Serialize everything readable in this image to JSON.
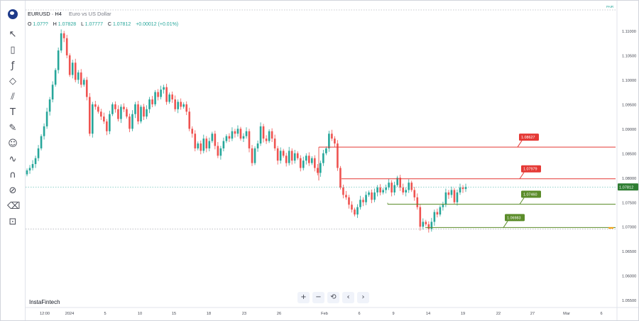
{
  "header": {
    "symbol": "EURUSD · H4",
    "description": "Euro vs US Dollar"
  },
  "ohlc": {
    "o_label": "O",
    "o": "1.07??",
    "h_label": "H",
    "h": "1.07828",
    "l_label": "L",
    "l": "1.07777",
    "c_label": "C",
    "c": "1.07812",
    "change": "+0.00012 (+0.01%)"
  },
  "top_right_label": "PAIR",
  "brand": "InstaFintech",
  "toolbar_icons": [
    "logo-icon",
    "crosshair-icon",
    "candles-icon",
    "fx-icon",
    "diamond-icon",
    "lines-icon",
    "text-icon",
    "pencil-icon",
    "smiley-icon",
    "wave-icon",
    "magnet-icon",
    "eye-off-icon",
    "trash-icon",
    "lock-icon"
  ],
  "nav_buttons": [
    "+",
    "−",
    "⟲",
    "‹",
    "›"
  ],
  "colors": {
    "up": "#26a69a",
    "down": "#ef5350",
    "red_level": "#e53935",
    "green_level": "#5b8c2a",
    "last_price": "#2e7d32"
  },
  "chart_data": {
    "type": "candlestick",
    "symbol": "EURUSD",
    "timeframe": "H4",
    "ylim": [
      1.0535,
      1.115
    ],
    "y_ticks": [
      1.11,
      1.105,
      1.1,
      1.095,
      1.09,
      1.085,
      1.08,
      1.075,
      1.07,
      1.065,
      1.06,
      1.055
    ],
    "x_ticks": [
      "12:00",
      "2024",
      "5",
      "10",
      "15",
      "18",
      "23",
      "26",
      "Feb",
      "6",
      "9",
      "14",
      "19",
      "22",
      "27",
      "Mar",
      "6"
    ],
    "last_price": 1.07812,
    "levels": [
      {
        "label": "1.08627",
        "value": 1.08627,
        "color": "red",
        "from": "Feb"
      },
      {
        "label": "1.07979",
        "value": 1.07979,
        "color": "red",
        "from": "Feb 3"
      },
      {
        "label": "1.07460",
        "value": 1.0746,
        "color": "green",
        "from": "Feb 9"
      },
      {
        "label": "1.06983",
        "value": 1.06983,
        "color": "green",
        "from": "Feb 14"
      }
    ],
    "closes": [
      1.0815,
      1.082,
      1.0828,
      1.084,
      1.086,
      1.0885,
      1.0905,
      1.0935,
      1.096,
      1.099,
      1.102,
      1.106,
      1.1095,
      1.1085,
      1.105,
      1.101,
      1.1035,
      1.1,
      1.1015,
      1.099,
      1.1,
      1.0965,
      1.089,
      1.095,
      1.0945,
      1.0935,
      1.0925,
      1.0915,
      1.0895,
      1.093,
      1.095,
      1.094,
      1.092,
      1.0945,
      1.094,
      1.0925,
      1.09,
      1.093,
      1.095,
      1.0915,
      1.0945,
      1.0925,
      1.094,
      1.096,
      1.095,
      1.0975,
      1.0965,
      1.098,
      1.0985,
      1.0955,
      1.097,
      1.096,
      1.094,
      1.0955,
      1.0945,
      1.095,
      1.0935,
      1.09,
      1.089,
      1.086,
      1.087,
      1.0855,
      1.088,
      1.086,
      1.0875,
      1.089,
      1.0865,
      1.0845,
      1.086,
      1.0875,
      1.0885,
      1.088,
      1.0895,
      1.089,
      1.09,
      1.088,
      1.0885,
      1.0895,
      1.086,
      1.083,
      1.086,
      1.087,
      1.0905,
      1.088,
      1.0875,
      1.0895,
      1.088,
      1.086,
      1.0835,
      1.0855,
      1.0845,
      1.083,
      1.0855,
      1.0835,
      1.085,
      1.084,
      1.082,
      1.0835,
      1.0845,
      1.083,
      1.084,
      1.082,
      1.081,
      1.083,
      1.085,
      1.086,
      1.089,
      1.088,
      1.087,
      1.082,
      1.078,
      1.0765,
      1.076,
      1.0745,
      1.0735,
      1.0725,
      1.074,
      1.0755,
      1.075,
      1.0765,
      1.077,
      1.0755,
      1.077,
      1.078,
      1.077,
      1.0775,
      1.078,
      1.079,
      1.077,
      1.0785,
      1.08,
      1.078,
      1.077,
      1.0775,
      1.079,
      1.0775,
      1.076,
      1.074,
      1.07,
      1.071,
      1.0705,
      1.0695,
      1.071,
      1.073,
      1.0725,
      1.074,
      1.0745,
      1.077,
      1.0765,
      1.0775,
      1.075,
      1.077,
      1.078,
      1.0777,
      1.0781
    ]
  }
}
